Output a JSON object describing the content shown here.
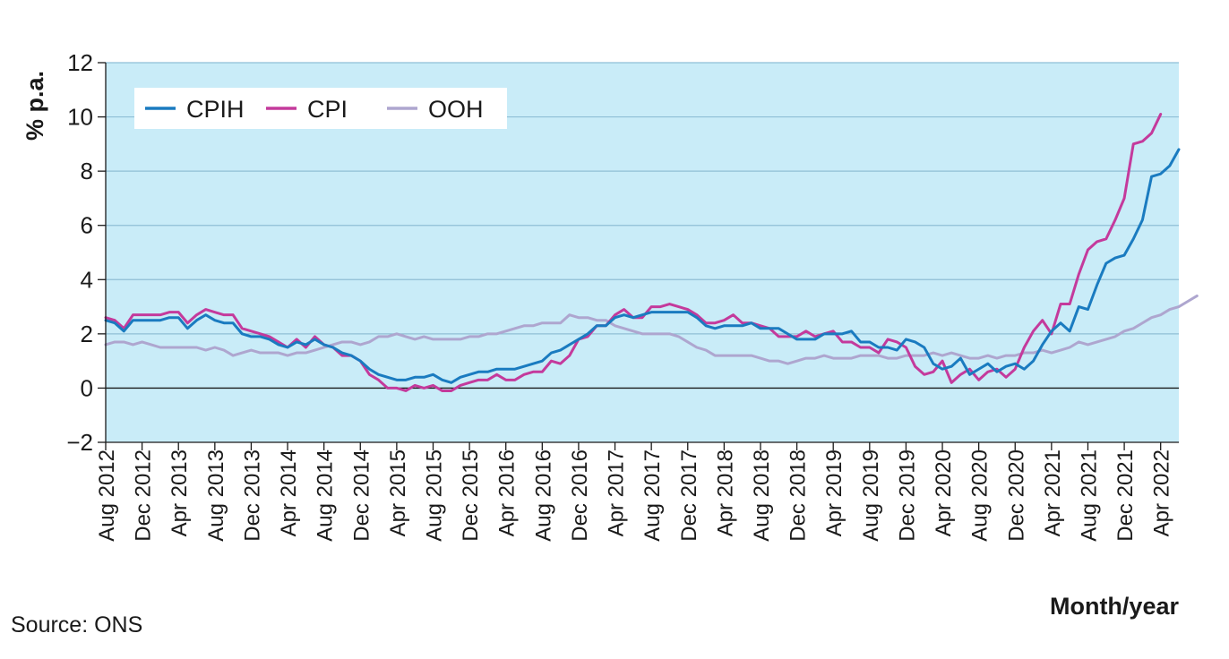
{
  "source": "Source: ONS",
  "chart_data": {
    "type": "line",
    "xlabel": "Month/year",
    "ylabel": "% p.a.",
    "ylim": [
      -2,
      12
    ],
    "yticks": [
      "12",
      "10",
      "8",
      "6",
      "4",
      "2",
      "0",
      "−2"
    ],
    "grid": true,
    "legend_position": "top-left",
    "x_start": "Aug 2012",
    "x_tick_labels": [
      "Aug 2012",
      "Dec 2012",
      "Apr 2013",
      "Aug 2013",
      "Dec 2013",
      "Apr 2014",
      "Aug 2014",
      "Dec 2014",
      "Apr 2015",
      "Aug 2015",
      "Dec 2015",
      "Apr 2016",
      "Aug 2016",
      "Dec 2016",
      "Apr 2017",
      "Aug 2017",
      "Dec 2017",
      "Apr 2018",
      "Aug 2018",
      "Dec 2018",
      "Apr 2019",
      "Aug 2019",
      "Dec 2019",
      "Apr 2020",
      "Aug 2020",
      "Dec 2020",
      "Apr 2021",
      "Aug 2021",
      "Dec 2021",
      "Apr 2022"
    ],
    "series": [
      {
        "name": "CPIH",
        "color": "#1a7bc0",
        "values": [
          2.5,
          2.4,
          2.1,
          2.5,
          2.5,
          2.5,
          2.5,
          2.6,
          2.6,
          2.2,
          2.5,
          2.7,
          2.5,
          2.4,
          2.4,
          2.0,
          1.9,
          1.9,
          1.8,
          1.6,
          1.5,
          1.7,
          1.6,
          1.8,
          1.6,
          1.5,
          1.3,
          1.2,
          1.0,
          0.7,
          0.5,
          0.4,
          0.3,
          0.3,
          0.4,
          0.4,
          0.5,
          0.3,
          0.2,
          0.4,
          0.5,
          0.6,
          0.6,
          0.7,
          0.7,
          0.7,
          0.8,
          0.9,
          1.0,
          1.3,
          1.4,
          1.6,
          1.8,
          2.0,
          2.3,
          2.3,
          2.6,
          2.7,
          2.6,
          2.7,
          2.8,
          2.8,
          2.8,
          2.8,
          2.8,
          2.6,
          2.3,
          2.2,
          2.3,
          2.3,
          2.3,
          2.4,
          2.2,
          2.2,
          2.2,
          2.0,
          1.8,
          1.8,
          1.8,
          2.0,
          2.0,
          2.0,
          2.1,
          1.7,
          1.7,
          1.5,
          1.5,
          1.4,
          1.8,
          1.7,
          1.5,
          0.9,
          0.7,
          0.8,
          1.1,
          0.5,
          0.7,
          0.9,
          0.6,
          0.8,
          0.9,
          0.7,
          1.0,
          1.6,
          2.1,
          2.4,
          2.1,
          3.0,
          2.9,
          3.8,
          4.6,
          4.8,
          4.9,
          5.5,
          6.2,
          7.8,
          7.9,
          8.2,
          8.8
        ]
      },
      {
        "name": "CPI",
        "color": "#c43a9c",
        "values": [
          2.6,
          2.5,
          2.2,
          2.7,
          2.7,
          2.7,
          2.7,
          2.8,
          2.8,
          2.4,
          2.7,
          2.9,
          2.8,
          2.7,
          2.7,
          2.2,
          2.1,
          2.0,
          1.9,
          1.7,
          1.5,
          1.8,
          1.5,
          1.9,
          1.6,
          1.5,
          1.2,
          1.2,
          1.0,
          0.5,
          0.3,
          0.0,
          0.0,
          -0.1,
          0.1,
          0.0,
          0.1,
          -0.1,
          -0.1,
          0.1,
          0.2,
          0.3,
          0.3,
          0.5,
          0.3,
          0.3,
          0.5,
          0.6,
          0.6,
          1.0,
          0.9,
          1.2,
          1.8,
          1.9,
          2.3,
          2.3,
          2.7,
          2.9,
          2.6,
          2.6,
          3.0,
          3.0,
          3.1,
          3.0,
          2.9,
          2.7,
          2.4,
          2.4,
          2.5,
          2.7,
          2.4,
          2.4,
          2.3,
          2.2,
          1.9,
          1.9,
          1.9,
          2.1,
          1.9,
          2.0,
          2.1,
          1.7,
          1.7,
          1.5,
          1.5,
          1.3,
          1.8,
          1.7,
          1.5,
          0.8,
          0.5,
          0.6,
          1.0,
          0.2,
          0.5,
          0.7,
          0.3,
          0.6,
          0.7,
          0.4,
          0.7,
          1.5,
          2.1,
          2.5,
          2.0,
          3.1,
          3.1,
          4.2,
          5.1,
          5.4,
          5.5,
          6.2,
          7.0,
          9.0,
          9.1,
          9.4,
          10.1
        ]
      },
      {
        "name": "OOH",
        "color": "#aea6cf",
        "values": [
          1.6,
          1.7,
          1.7,
          1.6,
          1.7,
          1.6,
          1.5,
          1.5,
          1.5,
          1.5,
          1.5,
          1.4,
          1.5,
          1.4,
          1.2,
          1.3,
          1.4,
          1.3,
          1.3,
          1.3,
          1.2,
          1.3,
          1.3,
          1.4,
          1.5,
          1.6,
          1.7,
          1.7,
          1.6,
          1.7,
          1.9,
          1.9,
          2.0,
          1.9,
          1.8,
          1.9,
          1.8,
          1.8,
          1.8,
          1.8,
          1.9,
          1.9,
          2.0,
          2.0,
          2.1,
          2.2,
          2.3,
          2.3,
          2.4,
          2.4,
          2.4,
          2.7,
          2.6,
          2.6,
          2.5,
          2.5,
          2.3,
          2.2,
          2.1,
          2.0,
          2.0,
          2.0,
          2.0,
          1.9,
          1.7,
          1.5,
          1.4,
          1.2,
          1.2,
          1.2,
          1.2,
          1.2,
          1.1,
          1.0,
          1.0,
          0.9,
          1.0,
          1.1,
          1.1,
          1.2,
          1.1,
          1.1,
          1.1,
          1.2,
          1.2,
          1.2,
          1.1,
          1.1,
          1.2,
          1.2,
          1.2,
          1.3,
          1.2,
          1.3,
          1.2,
          1.1,
          1.1,
          1.2,
          1.1,
          1.2,
          1.2,
          1.3,
          1.3,
          1.4,
          1.3,
          1.4,
          1.5,
          1.7,
          1.6,
          1.7,
          1.8,
          1.9,
          2.1,
          2.2,
          2.4,
          2.6,
          2.7,
          2.9,
          3.0,
          3.2,
          3.4
        ]
      }
    ]
  }
}
